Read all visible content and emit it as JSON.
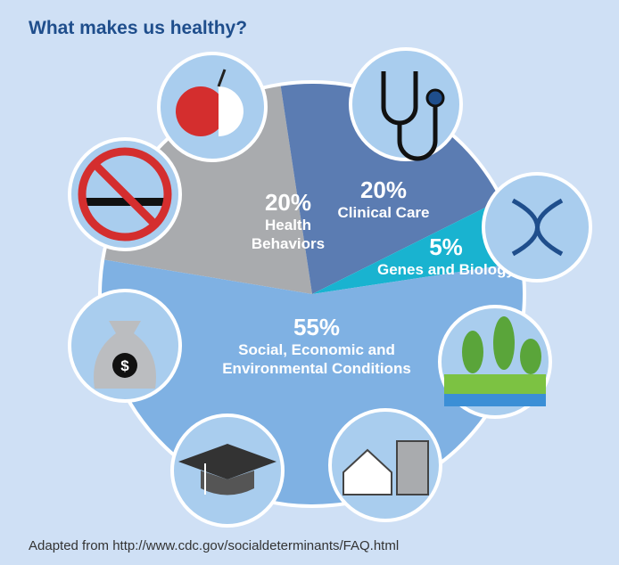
{
  "chart_data": {
    "type": "pie",
    "title": "What makes us healthy?",
    "categories": [
      "Health Behaviors",
      "Clinical Care",
      "Genes and Biology",
      "Social, Economic and Environmental Conditions"
    ],
    "values": [
      20,
      20,
      5,
      55
    ],
    "value_labels": [
      "20%",
      "20%",
      "5%",
      "55%"
    ],
    "colors": [
      "#a9abae",
      "#5b7cb2",
      "#19b3d0",
      "#7fb1e3"
    ],
    "source": "Adapted from http://www.cdc.gov/socialdeterminants/FAQ.html"
  }
}
